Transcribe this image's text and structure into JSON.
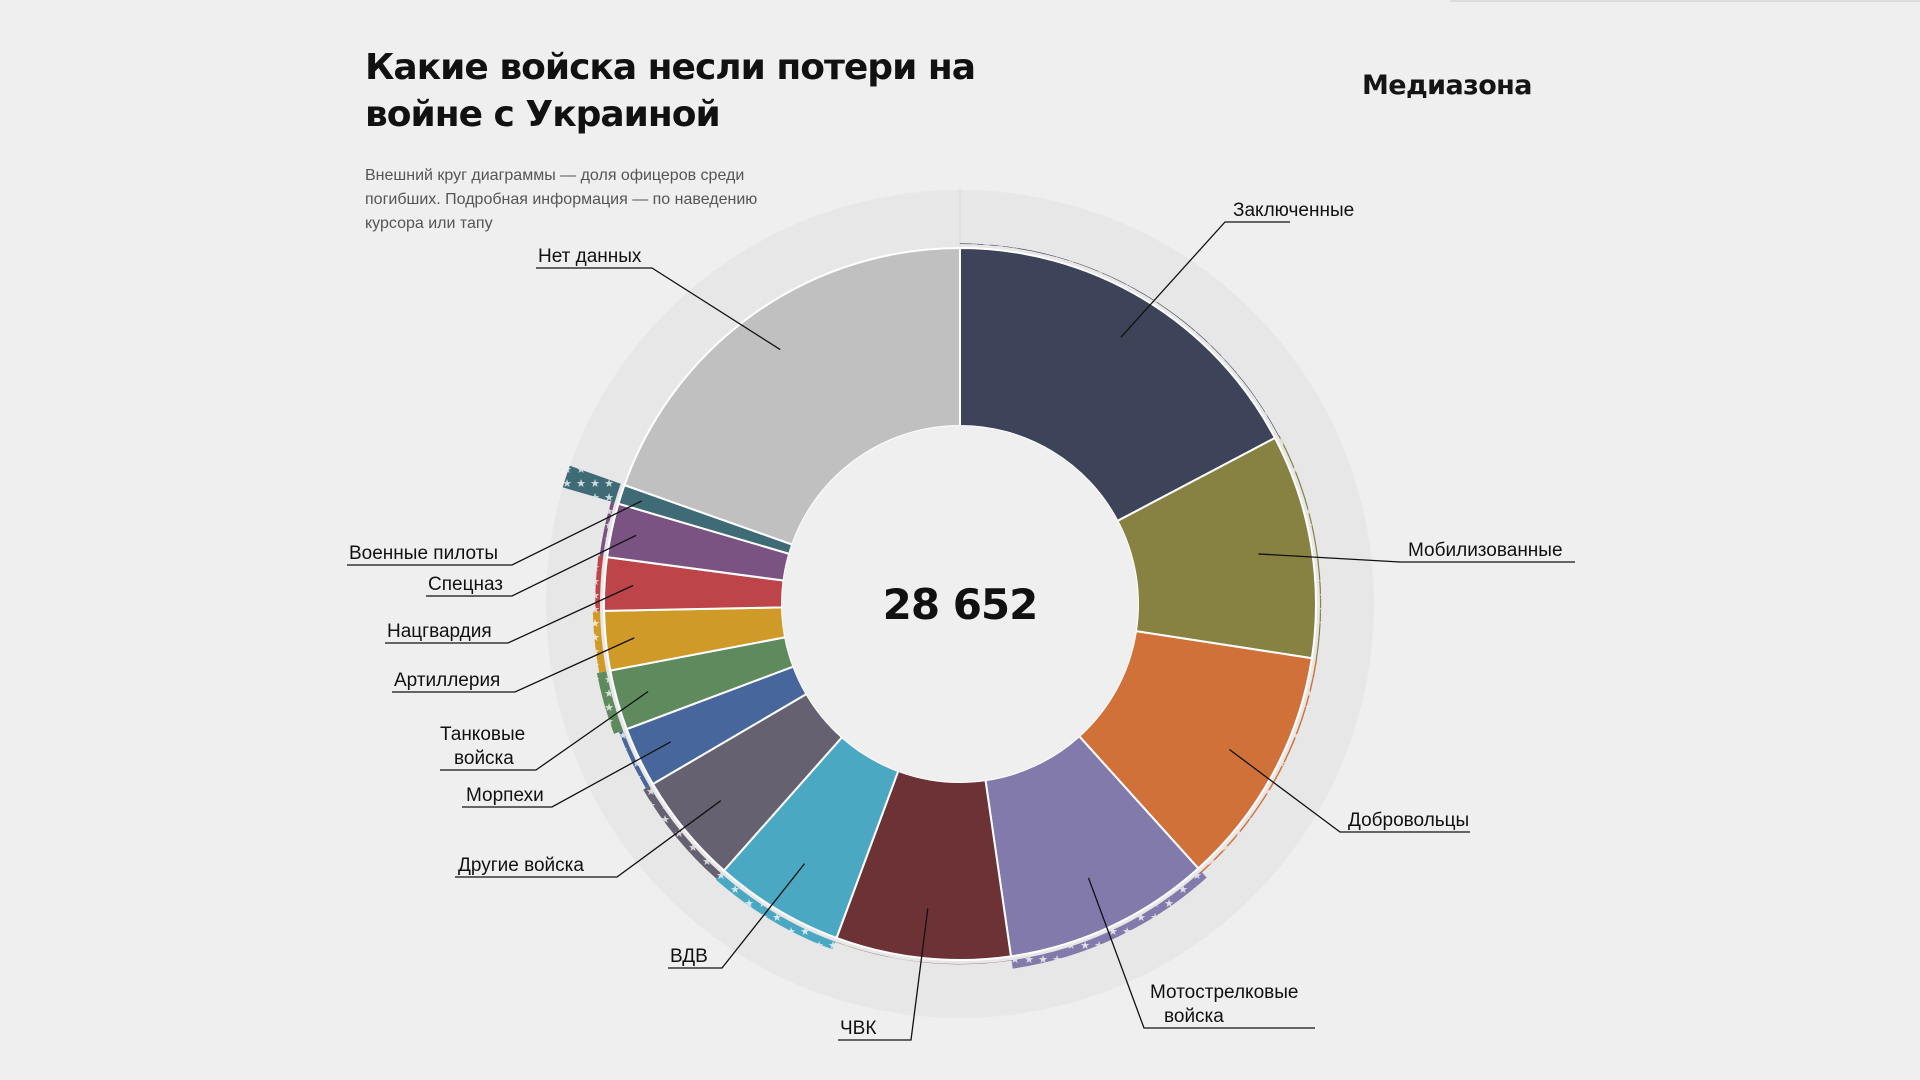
{
  "header": {
    "title": "Какие войска несли потери на войне с Украиной",
    "subtitle": "Внешний круг диаграммы — доля офицеров среди погибших. Подробная информация — по наведению курсора или тапу",
    "brand": "Медиазона"
  },
  "chart_data": {
    "type": "donut",
    "total_label": "28 652",
    "total": 28652,
    "categories": [
      "Заключенные",
      "Мобилизованные",
      "Добровольцы",
      "Мотострелковые войска",
      "ЧВК",
      "ВДВ",
      "Другие войска",
      "Морпехи",
      "Танковые войска",
      "Артиллерия",
      "Нацгвардия",
      "Спецназ",
      "Военные пилоты",
      "Нет данных"
    ],
    "labels": [
      {
        "lines": [
          "Заключенные"
        ]
      },
      {
        "lines": [
          "Мобилизованные"
        ]
      },
      {
        "lines": [
          "Добровольцы"
        ]
      },
      {
        "lines": [
          "Мотострелковые",
          "войска"
        ]
      },
      {
        "lines": [
          "ЧВК"
        ]
      },
      {
        "lines": [
          "ВДВ"
        ]
      },
      {
        "lines": [
          "Другие войска"
        ]
      },
      {
        "lines": [
          "Морпехи"
        ]
      },
      {
        "lines": [
          "Танковые",
          "войска"
        ]
      },
      {
        "lines": [
          "Артиллерия"
        ]
      },
      {
        "lines": [
          "Нацгвардия"
        ]
      },
      {
        "lines": [
          "Спецназ"
        ]
      },
      {
        "lines": [
          "Военные пилоты"
        ]
      },
      {
        "lines": [
          "Нет данных"
        ]
      }
    ],
    "values": [
      4950,
      2910,
      3120,
      2690,
      2270,
      1690,
      1440,
      780,
      780,
      770,
      690,
      700,
      250,
      5610
    ],
    "officer_share": [
      0.005,
      0.01,
      0.012,
      0.07,
      0.002,
      0.068,
      0.06,
      0.035,
      0.08,
      0.06,
      0.04,
      0.03,
      0.45,
      0
    ],
    "colors": [
      "#3d4358",
      "#878242",
      "#d1713a",
      "#827aaa",
      "#6d3236",
      "#4ba8c3",
      "#666170",
      "#47669b",
      "#5f8a5d",
      "#cf9a28",
      "#bd4448",
      "#7b5383",
      "#3f6b76",
      "#c0c0c0"
    ]
  }
}
